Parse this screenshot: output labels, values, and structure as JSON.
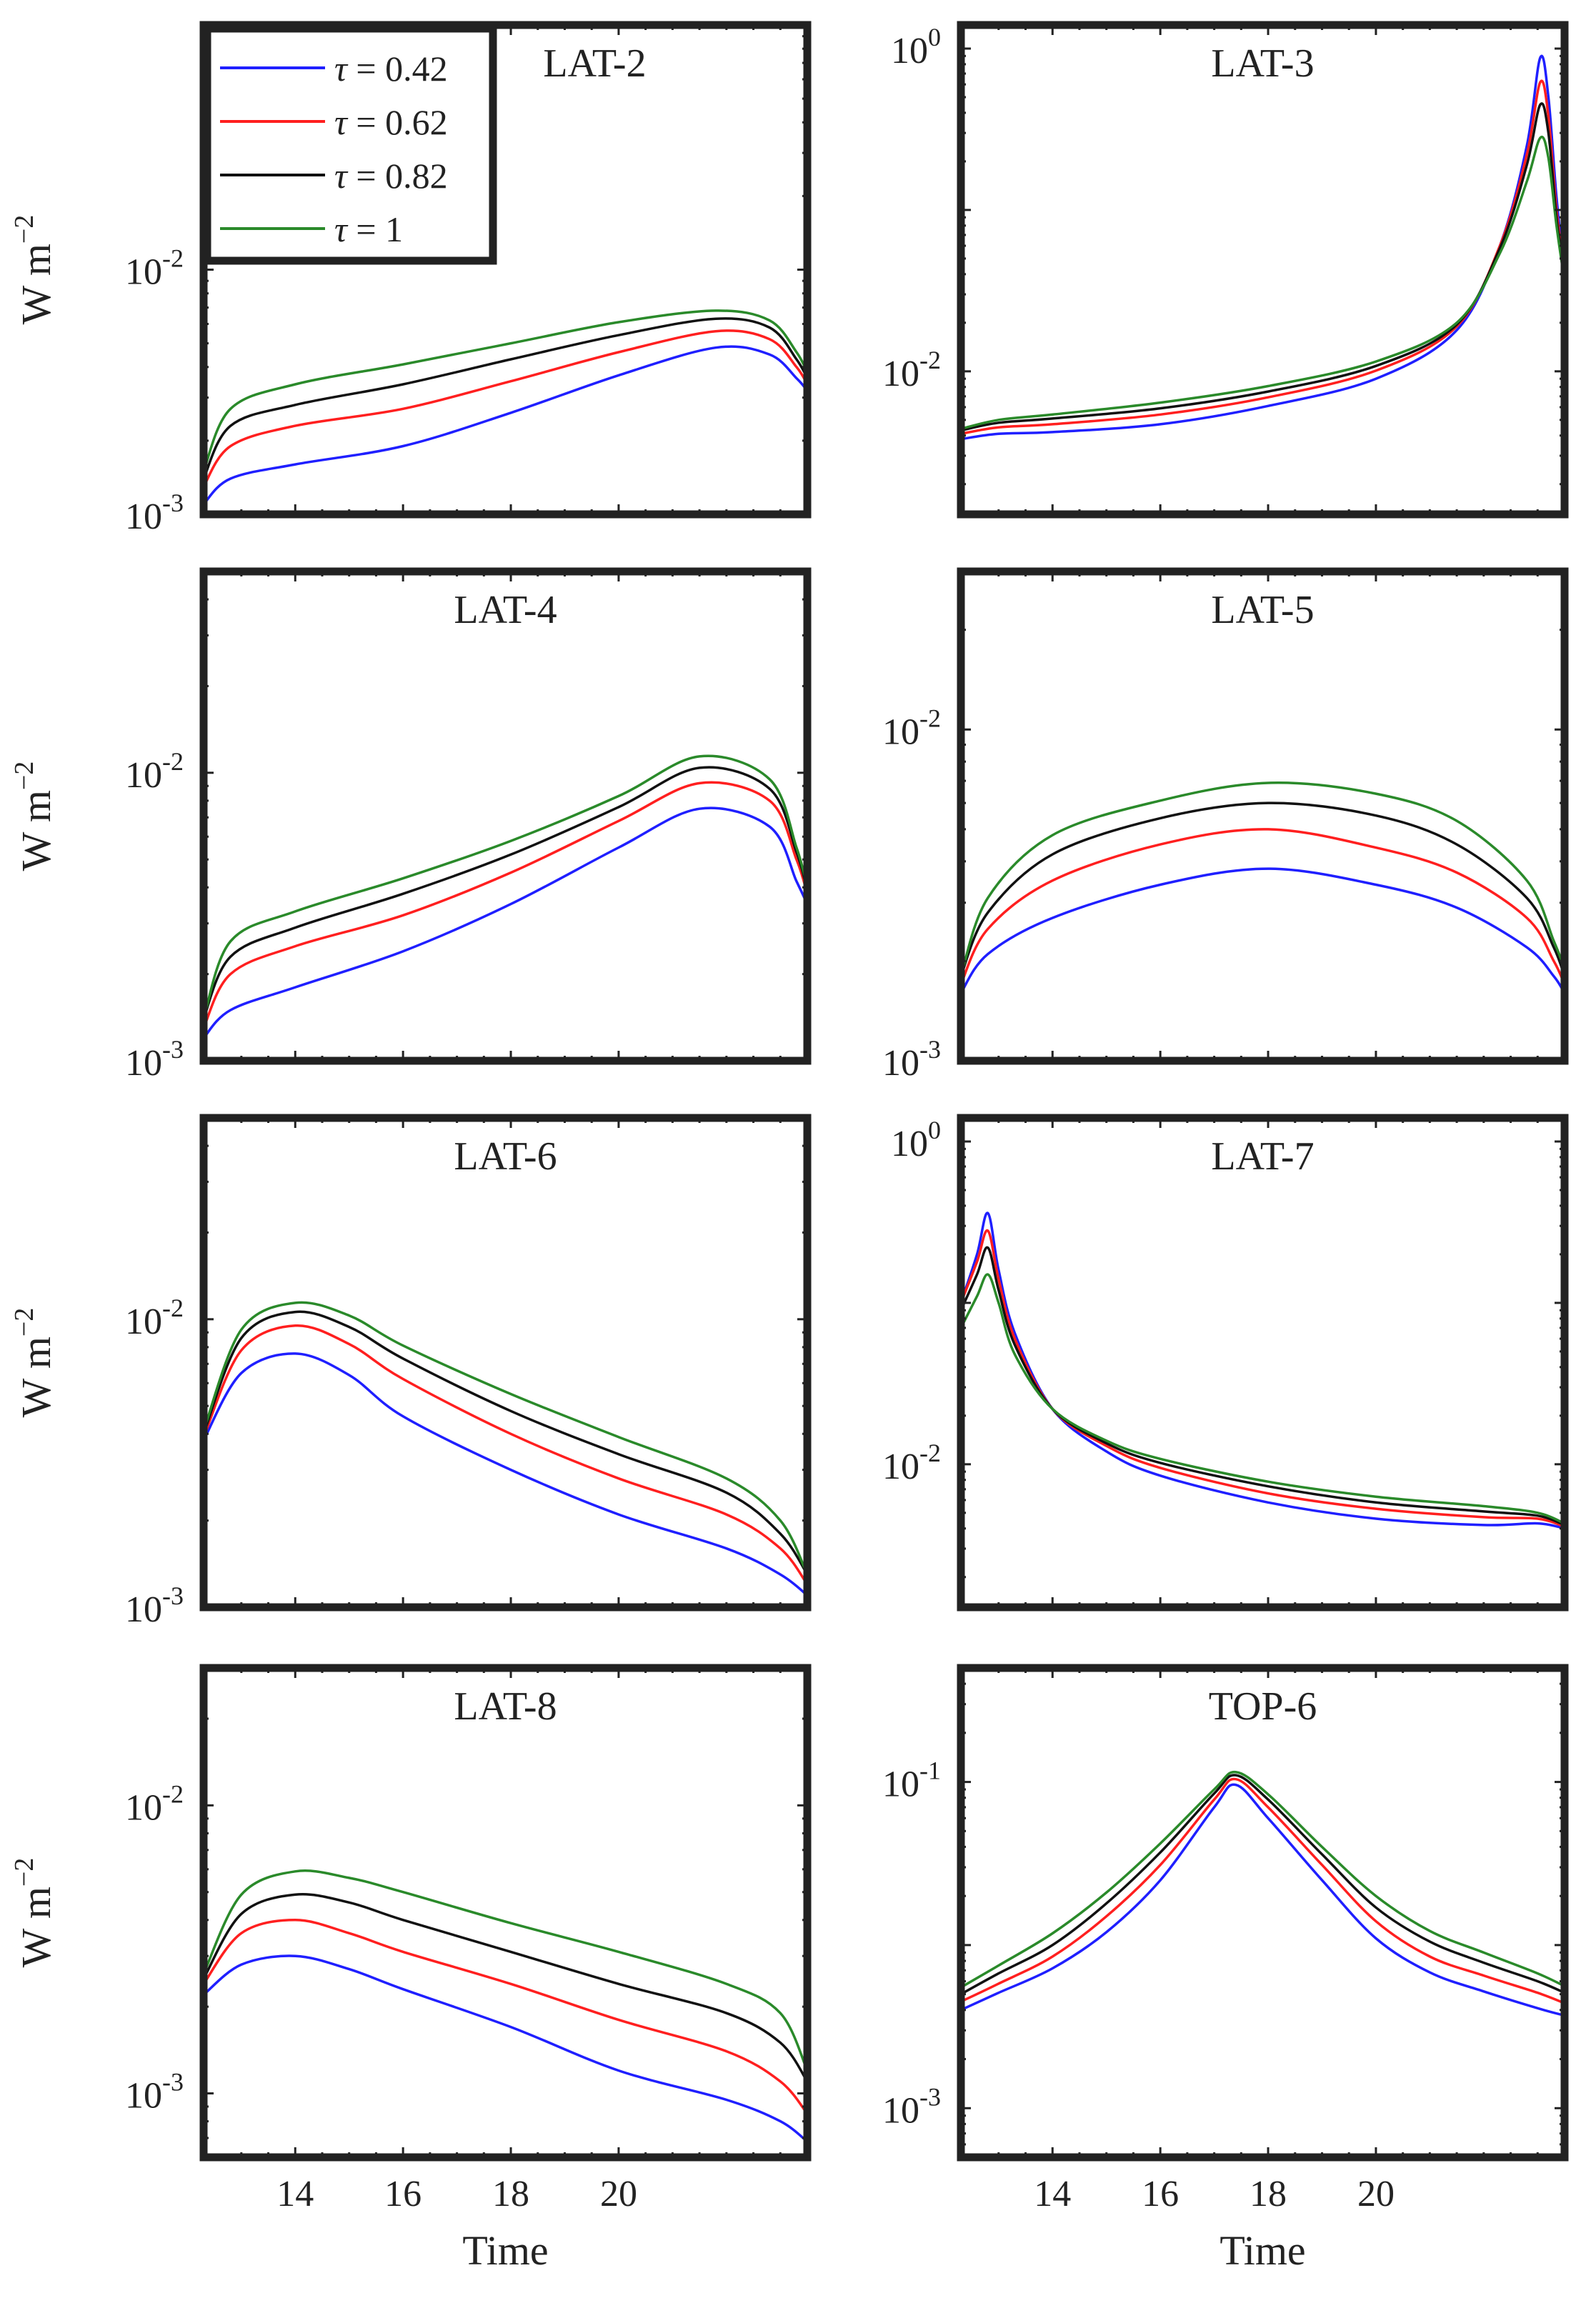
{
  "figure": {
    "xlabel": "Time",
    "ylabel_main": "W m",
    "ylabel_exp": "−2"
  },
  "legend": [
    {
      "symbol": "τ",
      "text": "= 0.42",
      "color": "#1f1fff"
    },
    {
      "symbol": "τ",
      "text": "= 0.62",
      "color": "#ff1f1f"
    },
    {
      "symbol": "τ",
      "text": "= 0.82",
      "color": "#111111"
    },
    {
      "symbol": "τ",
      "text": "= 1",
      "color": "#2a8a2a"
    }
  ],
  "chart_data": [
    {
      "type": "line",
      "title": "LAT-2",
      "xlabel": "",
      "ylabel": "W m−2",
      "xlim": [
        12.3,
        23.5
      ],
      "ylog": true,
      "ylim": [
        0.001,
        0.1
      ],
      "yticks": [
        {
          "value": 0.001,
          "label": "10",
          "exp": "-3"
        },
        {
          "value": 0.01,
          "label": "10",
          "exp": "-2"
        }
      ],
      "x": [
        12.3,
        12.8,
        14,
        16,
        18,
        20,
        21.8,
        22.8,
        23.3,
        23.5
      ],
      "series": [
        {
          "name": "τ = 0.42",
          "values": [
            0.0011,
            0.0014,
            0.0016,
            0.0019,
            0.0026,
            0.0037,
            0.0048,
            0.0045,
            0.0036,
            0.0032
          ]
        },
        {
          "name": "τ = 0.62",
          "values": [
            0.0013,
            0.0019,
            0.0023,
            0.0027,
            0.0035,
            0.0046,
            0.0056,
            0.0052,
            0.004,
            0.0034
          ]
        },
        {
          "name": "τ = 0.82",
          "values": [
            0.0014,
            0.0023,
            0.0028,
            0.0034,
            0.0043,
            0.0054,
            0.0063,
            0.0058,
            0.0043,
            0.0036
          ]
        },
        {
          "name": "τ = 1",
          "values": [
            0.0015,
            0.0027,
            0.0034,
            0.0041,
            0.005,
            0.0061,
            0.0068,
            0.0062,
            0.0046,
            0.0038
          ]
        }
      ]
    },
    {
      "type": "line",
      "title": "LAT-3",
      "xlabel": "",
      "ylabel": "",
      "xlim": [
        12.3,
        23.5
      ],
      "ylog": true,
      "ylim": [
        0.0013,
        1.4
      ],
      "yticks": [
        {
          "value": 0.01,
          "label": "10",
          "exp": "-2"
        },
        {
          "value": 1,
          "label": "10",
          "exp": "0"
        }
      ],
      "x": [
        12.3,
        13,
        14,
        16,
        18,
        20,
        21.5,
        22.3,
        22.8,
        23.05,
        23.2,
        23.35,
        23.5
      ],
      "series": [
        {
          "name": "τ = 0.42",
          "values": [
            0.0038,
            0.0041,
            0.0042,
            0.0047,
            0.0061,
            0.009,
            0.018,
            0.06,
            0.25,
            0.88,
            0.5,
            0.12,
            0.04
          ]
        },
        {
          "name": "τ = 0.62",
          "values": [
            0.0041,
            0.0045,
            0.0047,
            0.0054,
            0.0069,
            0.0101,
            0.019,
            0.06,
            0.22,
            0.62,
            0.38,
            0.1,
            0.04
          ]
        },
        {
          "name": "τ = 0.82",
          "values": [
            0.0043,
            0.0048,
            0.0051,
            0.0059,
            0.0075,
            0.0108,
            0.0195,
            0.058,
            0.19,
            0.45,
            0.3,
            0.09,
            0.038
          ]
        },
        {
          "name": "τ = 1",
          "values": [
            0.0044,
            0.005,
            0.0054,
            0.0064,
            0.0081,
            0.0115,
            0.02,
            0.054,
            0.15,
            0.28,
            0.21,
            0.08,
            0.036
          ]
        }
      ]
    },
    {
      "type": "line",
      "title": "LAT-4",
      "xlabel": "",
      "ylabel": "W m−2",
      "xlim": [
        12.3,
        23.5
      ],
      "ylog": true,
      "ylim": [
        0.001,
        0.05
      ],
      "yticks": [
        {
          "value": 0.001,
          "label": "10",
          "exp": "-3"
        },
        {
          "value": 0.01,
          "label": "10",
          "exp": "-2"
        }
      ],
      "x": [
        12.3,
        12.8,
        14,
        16,
        18,
        20,
        21.5,
        22.8,
        23.3,
        23.5
      ],
      "series": [
        {
          "name": "τ = 0.42",
          "values": [
            0.0012,
            0.0015,
            0.0018,
            0.0024,
            0.0035,
            0.0055,
            0.0075,
            0.0065,
            0.0042,
            0.0035
          ]
        },
        {
          "name": "τ = 0.62",
          "values": [
            0.0013,
            0.002,
            0.0025,
            0.0032,
            0.0045,
            0.0068,
            0.0092,
            0.008,
            0.005,
            0.0038
          ]
        },
        {
          "name": "τ = 0.82",
          "values": [
            0.0014,
            0.0023,
            0.0029,
            0.0038,
            0.0052,
            0.0076,
            0.0104,
            0.0088,
            0.0053,
            0.0039
          ]
        },
        {
          "name": "τ = 1",
          "values": [
            0.0014,
            0.0026,
            0.0033,
            0.0043,
            0.0058,
            0.0083,
            0.0114,
            0.0095,
            0.0055,
            0.004
          ]
        }
      ]
    },
    {
      "type": "line",
      "title": "LAT-5",
      "xlabel": "",
      "ylabel": "",
      "xlim": [
        12.3,
        23.5
      ],
      "ylog": true,
      "ylim": [
        0.001,
        0.03
      ],
      "yticks": [
        {
          "value": 0.001,
          "label": "10",
          "exp": "-3"
        },
        {
          "value": 0.01,
          "label": "10",
          "exp": "-2"
        }
      ],
      "x": [
        12.3,
        12.8,
        14,
        16,
        18,
        20,
        21.5,
        22.8,
        23.3,
        23.5
      ],
      "series": [
        {
          "name": "τ = 0.42",
          "values": [
            0.0016,
            0.0021,
            0.0027,
            0.0034,
            0.0038,
            0.0034,
            0.0029,
            0.0022,
            0.0018,
            0.0016
          ]
        },
        {
          "name": "τ = 0.62",
          "values": [
            0.0017,
            0.0025,
            0.0035,
            0.0045,
            0.005,
            0.0044,
            0.0037,
            0.0027,
            0.002,
            0.0017
          ]
        },
        {
          "name": "τ = 0.82",
          "values": [
            0.0018,
            0.0028,
            0.0042,
            0.0054,
            0.006,
            0.0055,
            0.0045,
            0.0031,
            0.0022,
            0.0018
          ]
        },
        {
          "name": "τ = 1",
          "values": [
            0.0018,
            0.0031,
            0.0048,
            0.0061,
            0.0069,
            0.0064,
            0.0053,
            0.0035,
            0.0023,
            0.0019
          ]
        }
      ]
    },
    {
      "type": "line",
      "title": "LAT-6",
      "xlabel": "",
      "ylabel": "W m−2",
      "xlim": [
        12.3,
        23.5
      ],
      "ylog": true,
      "ylim": [
        0.001,
        0.05
      ],
      "yticks": [
        {
          "value": 0.001,
          "label": "10",
          "exp": "-3"
        },
        {
          "value": 0.01,
          "label": "10",
          "exp": "-2"
        }
      ],
      "x": [
        12.3,
        13,
        14,
        15,
        16,
        18,
        20,
        22,
        23,
        23.5
      ],
      "series": [
        {
          "name": "τ = 0.42",
          "values": [
            0.0038,
            0.0065,
            0.0076,
            0.0064,
            0.0046,
            0.003,
            0.0021,
            0.0016,
            0.0013,
            0.0011
          ]
        },
        {
          "name": "τ = 0.62",
          "values": [
            0.0039,
            0.0078,
            0.0095,
            0.0082,
            0.0062,
            0.004,
            0.0028,
            0.0021,
            0.0016,
            0.0012
          ]
        },
        {
          "name": "τ = 0.82",
          "values": [
            0.004,
            0.0086,
            0.0106,
            0.0094,
            0.0073,
            0.0048,
            0.0034,
            0.0025,
            0.0018,
            0.0013
          ]
        },
        {
          "name": "τ = 1",
          "values": [
            0.0041,
            0.0092,
            0.0114,
            0.0103,
            0.0081,
            0.0055,
            0.0039,
            0.0028,
            0.002,
            0.0013
          ]
        }
      ]
    },
    {
      "type": "line",
      "title": "LAT-7",
      "xlabel": "",
      "ylabel": "",
      "xlim": [
        12.3,
        23.5
      ],
      "ylog": true,
      "ylim": [
        0.0013,
        1.4
      ],
      "yticks": [
        {
          "value": 0.01,
          "label": "10",
          "exp": "-2"
        },
        {
          "value": 1,
          "label": "10",
          "exp": "0"
        }
      ],
      "x": [
        12.3,
        12.6,
        12.8,
        13.0,
        13.3,
        14,
        15,
        16,
        18,
        20,
        22,
        23,
        23.5
      ],
      "series": [
        {
          "name": "τ = 0.42",
          "values": [
            0.1,
            0.2,
            0.36,
            0.16,
            0.065,
            0.022,
            0.012,
            0.0085,
            0.0058,
            0.0046,
            0.0042,
            0.0043,
            0.004
          ]
        },
        {
          "name": "τ = 0.62",
          "values": [
            0.1,
            0.18,
            0.28,
            0.14,
            0.06,
            0.022,
            0.013,
            0.0095,
            0.0066,
            0.0053,
            0.0047,
            0.0046,
            0.0041
          ]
        },
        {
          "name": "τ = 0.82",
          "values": [
            0.09,
            0.15,
            0.22,
            0.12,
            0.055,
            0.022,
            0.0135,
            0.0102,
            0.0073,
            0.0058,
            0.0051,
            0.0048,
            0.0042
          ]
        },
        {
          "name": "τ = 1",
          "values": [
            0.07,
            0.11,
            0.15,
            0.1,
            0.048,
            0.022,
            0.014,
            0.0108,
            0.0078,
            0.0063,
            0.0055,
            0.005,
            0.0043
          ]
        }
      ]
    },
    {
      "type": "line",
      "title": "LAT-8",
      "xlabel": "Time",
      "ylabel": "W m−2",
      "xlim": [
        12.3,
        23.5
      ],
      "ylog": true,
      "ylim": [
        0.0006,
        0.03
      ],
      "xticks": [
        14,
        16,
        18,
        20
      ],
      "yticks": [
        {
          "value": 0.001,
          "label": "10",
          "exp": "-3"
        },
        {
          "value": 0.01,
          "label": "10",
          "exp": "-2"
        }
      ],
      "x": [
        12.3,
        13,
        14,
        15,
        16,
        18,
        20,
        22,
        23,
        23.5
      ],
      "series": [
        {
          "name": "τ = 0.42",
          "values": [
            0.0022,
            0.0028,
            0.003,
            0.0027,
            0.0023,
            0.0017,
            0.0012,
            0.00095,
            0.0008,
            0.00068
          ]
        },
        {
          "name": "τ = 0.62",
          "values": [
            0.0024,
            0.0036,
            0.004,
            0.0036,
            0.0031,
            0.0024,
            0.0018,
            0.0014,
            0.0011,
            0.00085
          ]
        },
        {
          "name": "τ = 0.82",
          "values": [
            0.0025,
            0.0042,
            0.0049,
            0.0046,
            0.004,
            0.0031,
            0.0024,
            0.0019,
            0.0015,
            0.0011
          ]
        },
        {
          "name": "τ = 1",
          "values": [
            0.0026,
            0.0049,
            0.0059,
            0.0056,
            0.005,
            0.0039,
            0.0031,
            0.0024,
            0.0019,
            0.0012
          ]
        }
      ]
    },
    {
      "type": "line",
      "title": "TOP-6",
      "xlabel": "Time",
      "ylabel": "",
      "xlim": [
        12.3,
        23.5
      ],
      "ylog": true,
      "ylim": [
        0.0005,
        0.5
      ],
      "xticks": [
        14,
        16,
        18,
        20
      ],
      "yticks": [
        {
          "value": 0.001,
          "label": "10",
          "exp": "-3"
        },
        {
          "value": 0.1,
          "label": "10",
          "exp": "-1"
        }
      ],
      "x": [
        12.3,
        13,
        14,
        15,
        16,
        17,
        17.4,
        18,
        19,
        20,
        21,
        22,
        23,
        23.5
      ],
      "series": [
        {
          "name": "τ = 0.42",
          "values": [
            0.004,
            0.0051,
            0.0072,
            0.012,
            0.025,
            0.07,
            0.096,
            0.06,
            0.025,
            0.011,
            0.0068,
            0.0052,
            0.0041,
            0.0037
          ]
        },
        {
          "name": "τ = 0.62",
          "values": [
            0.0045,
            0.0058,
            0.0085,
            0.015,
            0.031,
            0.078,
            0.104,
            0.07,
            0.031,
            0.014,
            0.0085,
            0.0065,
            0.0051,
            0.0044
          ]
        },
        {
          "name": "τ = 0.82",
          "values": [
            0.005,
            0.0067,
            0.01,
            0.018,
            0.037,
            0.085,
            0.11,
            0.078,
            0.036,
            0.017,
            0.0105,
            0.0078,
            0.006,
            0.0051
          ]
        },
        {
          "name": "τ = 1",
          "values": [
            0.0055,
            0.0075,
            0.0118,
            0.021,
            0.042,
            0.09,
            0.115,
            0.084,
            0.04,
            0.02,
            0.0122,
            0.009,
            0.0067,
            0.0056
          ]
        }
      ]
    }
  ]
}
